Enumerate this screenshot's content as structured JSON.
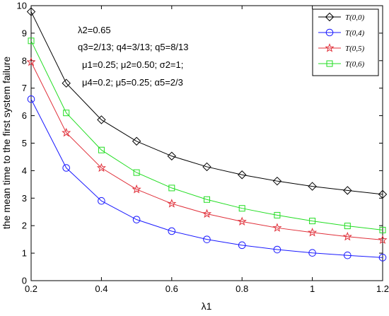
{
  "chart_data": {
    "type": "line",
    "title": "",
    "xlabel": "λ1",
    "ylabel": "the mean time to the first system failure",
    "xlim": [
      0.2,
      1.2
    ],
    "ylim": [
      0,
      10
    ],
    "x_ticks": [
      "0.2",
      "0.4",
      "0.6",
      "0.8",
      "1",
      "1.2"
    ],
    "y_ticks": [
      "0",
      "1",
      "2",
      "3",
      "4",
      "5",
      "6",
      "7",
      "8",
      "9",
      "10"
    ],
    "x": [
      0.2,
      0.3,
      0.4,
      0.5,
      0.6,
      0.7,
      0.8,
      0.9,
      1.0,
      1.1,
      1.2
    ],
    "series": [
      {
        "name": "T(0,0)",
        "color": "#000000",
        "marker": "diamond",
        "values": [
          9.78,
          7.18,
          5.85,
          5.07,
          4.53,
          4.14,
          3.85,
          3.62,
          3.43,
          3.28,
          3.14
        ]
      },
      {
        "name": "T(0,4)",
        "color": "#1a1aff",
        "marker": "circle",
        "values": [
          6.6,
          4.1,
          2.9,
          2.22,
          1.8,
          1.5,
          1.29,
          1.13,
          1.01,
          0.92,
          0.84
        ]
      },
      {
        "name": "T(0,5)",
        "color": "#e0303a",
        "marker": "star",
        "values": [
          7.95,
          5.38,
          4.1,
          3.32,
          2.8,
          2.43,
          2.15,
          1.92,
          1.75,
          1.6,
          1.48
        ]
      },
      {
        "name": "T(0,6)",
        "color": "#22dd22",
        "marker": "square",
        "values": [
          8.72,
          6.1,
          4.75,
          3.93,
          3.37,
          2.95,
          2.63,
          2.38,
          2.17,
          1.99,
          1.84
        ]
      }
    ],
    "legend_position": "top-right",
    "grid": false,
    "annotations": [
      "λ2=0.65",
      "q3=2/13; q4=3/13; q5=8/13",
      "μ1=0.25; μ2=0.50; σ2=1;",
      "μ4=0.2; μ5=0.25; α5=2/3"
    ]
  }
}
